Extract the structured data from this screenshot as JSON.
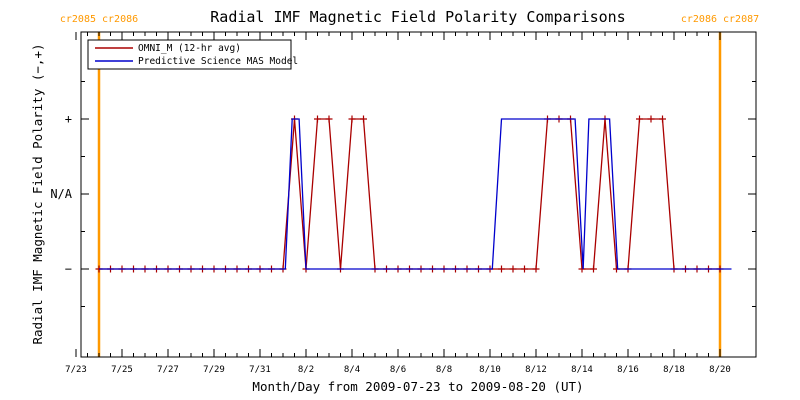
{
  "chart_data": {
    "type": "line",
    "title": "Radial IMF Magnetic Field Polarity Comparisons",
    "xlabel": "Month/Day from 2009-07-23 to 2009-08-20 (UT)",
    "ylabel": "Radial IMF Magnetic Field Polarity (−,+)",
    "xlim": [
      0,
      28.5
    ],
    "ylim": [
      -2,
      2
    ],
    "x_ticks": [
      {
        "x": 0,
        "label": "7/23"
      },
      {
        "x": 2,
        "label": "7/25"
      },
      {
        "x": 4,
        "label": "7/27"
      },
      {
        "x": 6,
        "label": "7/29"
      },
      {
        "x": 8,
        "label": "7/31"
      },
      {
        "x": 10,
        "label": "8/2"
      },
      {
        "x": 12,
        "label": "8/4"
      },
      {
        "x": 14,
        "label": "8/6"
      },
      {
        "x": 16,
        "label": "8/8"
      },
      {
        "x": 18,
        "label": "8/10"
      },
      {
        "x": 20,
        "label": "8/12"
      },
      {
        "x": 22,
        "label": "8/14"
      },
      {
        "x": 24,
        "label": "8/16"
      },
      {
        "x": 26,
        "label": "8/18"
      },
      {
        "x": 28,
        "label": "8/20"
      }
    ],
    "y_ticks": [
      {
        "y": 1,
        "label": "+"
      },
      {
        "y": 0,
        "label": "N/A"
      },
      {
        "y": -1,
        "label": "−"
      }
    ],
    "series": [
      {
        "name": "OMNI_M (12-hr avg)",
        "color": "#aa0000",
        "marker": "plus",
        "points": [
          [
            1.0,
            -1
          ],
          [
            1.5,
            -1
          ],
          [
            2.0,
            -1
          ],
          [
            2.5,
            -1
          ],
          [
            3.0,
            -1
          ],
          [
            3.5,
            -1
          ],
          [
            4.0,
            -1
          ],
          [
            4.5,
            -1
          ],
          [
            5.0,
            -1
          ],
          [
            5.5,
            -1
          ],
          [
            6.0,
            -1
          ],
          [
            6.5,
            -1
          ],
          [
            7.0,
            -1
          ],
          [
            7.5,
            -1
          ],
          [
            8.0,
            -1
          ],
          [
            8.5,
            -1
          ],
          [
            9.0,
            -1
          ],
          [
            9.5,
            1
          ],
          [
            10.0,
            -1
          ],
          [
            10.5,
            1
          ],
          [
            11.0,
            1
          ],
          [
            11.5,
            -1
          ],
          [
            12.0,
            1
          ],
          [
            12.5,
            1
          ],
          [
            13.0,
            -1
          ],
          [
            13.5,
            -1
          ],
          [
            14.0,
            -1
          ],
          [
            14.5,
            -1
          ],
          [
            15.0,
            -1
          ],
          [
            15.5,
            -1
          ],
          [
            16.0,
            -1
          ],
          [
            16.5,
            -1
          ],
          [
            17.0,
            -1
          ],
          [
            17.5,
            -1
          ],
          [
            18.0,
            -1
          ],
          [
            18.5,
            -1
          ],
          [
            19.0,
            -1
          ],
          [
            19.5,
            -1
          ],
          [
            20.0,
            -1
          ],
          [
            20.5,
            1
          ],
          [
            21.0,
            1
          ],
          [
            21.5,
            1
          ],
          [
            22.0,
            -1
          ],
          [
            22.5,
            -1
          ],
          [
            23.0,
            1
          ],
          [
            23.5,
            -1
          ],
          [
            24.0,
            -1
          ],
          [
            24.5,
            1
          ],
          [
            25.0,
            1
          ],
          [
            25.5,
            1
          ],
          [
            26.0,
            -1
          ],
          [
            26.5,
            -1
          ],
          [
            27.0,
            -1
          ],
          [
            27.5,
            -1
          ],
          [
            28.0,
            -1
          ]
        ]
      },
      {
        "name": "Predictive Science MAS Model",
        "color": "#0000cc",
        "marker": "none",
        "points": [
          [
            1.0,
            -1
          ],
          [
            9.1,
            -1
          ],
          [
            9.4,
            1
          ],
          [
            9.7,
            1
          ],
          [
            10.0,
            -1
          ],
          [
            18.1,
            -1
          ],
          [
            18.5,
            1
          ],
          [
            21.7,
            1
          ],
          [
            22.05,
            -1
          ],
          [
            22.3,
            1
          ],
          [
            23.2,
            1
          ],
          [
            23.55,
            -1
          ],
          [
            28.5,
            -1
          ]
        ]
      }
    ],
    "legend": {
      "placement": "top-left"
    },
    "carrington_markers": [
      {
        "x": 1.0,
        "labels": [
          "cr2085",
          "cr2086"
        ],
        "color": "#ff9900"
      },
      {
        "x": 28.0,
        "labels": [
          "cr2086",
          "cr2087"
        ],
        "color": "#ff9900"
      }
    ],
    "grid": false
  }
}
